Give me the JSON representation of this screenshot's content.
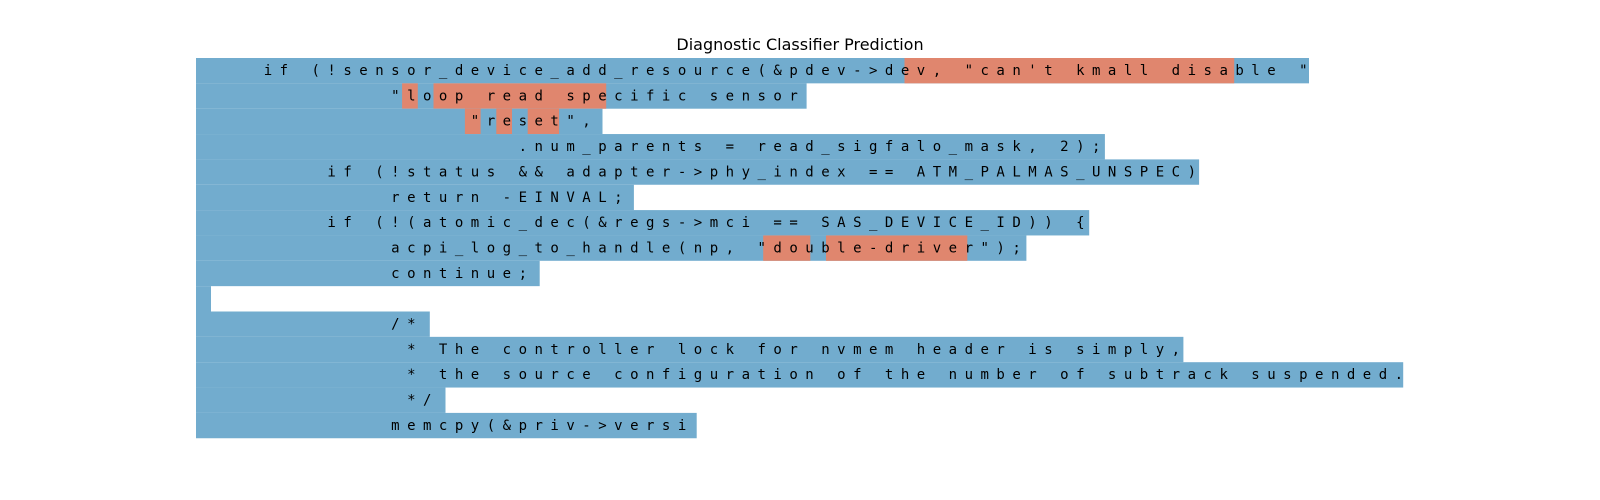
{
  "title": "Diagnostic Classifier Prediction",
  "colors": {
    "blue": "#72acce",
    "red": "#e0866e",
    "gap": "#ffffff"
  },
  "lines": [
    {
      "text": "    if (!sensor_device_add_resource(&pdev->dev, \"can't kmall disable \"",
      "highlights": [
        [
          45,
          66
        ]
      ]
    },
    {
      "text": "            \"loop read specific sensor",
      "highlights": [
        [
          13,
          14
        ],
        [
          15,
          26
        ]
      ]
    },
    {
      "text": "                 \"reset\",",
      "highlights": [
        [
          17,
          18
        ],
        [
          19,
          20
        ],
        [
          21,
          23
        ]
      ]
    },
    {
      "text": "                    .num_parents = read_sigfalo_mask, 2);",
      "highlights": []
    },
    {
      "text": "        if (!status && adapter->phy_index == ATM_PALMAS_UNSPEC)",
      "highlights": []
    },
    {
      "text": "            return -EINVAL;",
      "highlights": []
    },
    {
      "text": "        if (!(atomic_dec(&regs->mci == SAS_DEVICE_ID)) {",
      "highlights": []
    },
    {
      "text": "            acpi_log_to_handle(np, \"double-driver\");",
      "highlights": [
        [
          36,
          39
        ],
        [
          40,
          49
        ]
      ]
    },
    {
      "text": "            continue;",
      "highlights": []
    },
    {
      "text": "",
      "highlights": []
    },
    {
      "text": "            /*",
      "highlights": []
    },
    {
      "text": "             * The controller lock for nvmem header is simply,",
      "highlights": []
    },
    {
      "text": "             * the source configuration of the number of subtrack suspended.",
      "highlights": []
    },
    {
      "text": "             */",
      "highlights": []
    },
    {
      "text": "            memcpy(&priv->versi",
      "highlights": []
    }
  ]
}
